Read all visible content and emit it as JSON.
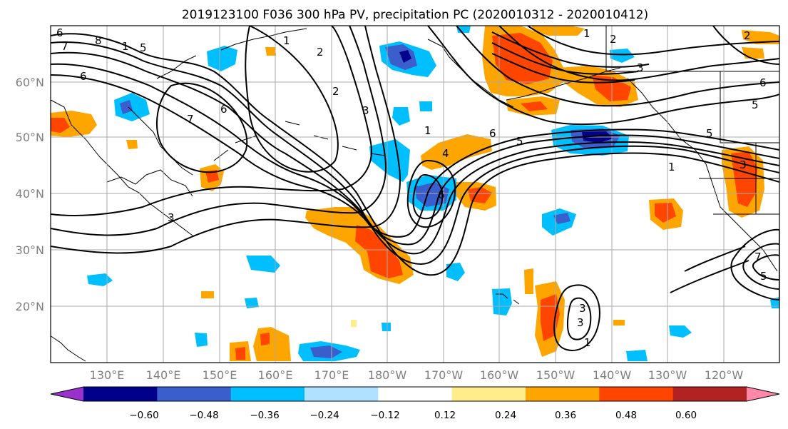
{
  "title": "2019123100 F036 300 hPa PV, precipitation PC (2020010312 - 2020010412)",
  "map": {
    "lat_ticks": [
      "60°N",
      "50°N",
      "40°N",
      "30°N",
      "20°N"
    ],
    "lon_ticks": [
      "130°E",
      "140°E",
      "150°E",
      "160°E",
      "170°E",
      "180°W",
      "170°W",
      "160°W",
      "150°W",
      "140°W",
      "130°W",
      "120°W"
    ],
    "contour_labels": [
      "6",
      "8",
      "7",
      "5",
      "1",
      "2",
      "6",
      "7",
      "6",
      "1",
      "2",
      "3",
      "1",
      "2",
      "3",
      "6",
      "5",
      "4",
      "1",
      "6",
      "3",
      "1",
      "5",
      "3",
      "6",
      "5",
      "2",
      "3",
      "1",
      "3",
      "7",
      "5"
    ]
  },
  "colorbar": {
    "tick_labels": [
      "−0.60",
      "−0.48",
      "−0.36",
      "−0.24",
      "−0.12",
      "0.12",
      "0.24",
      "0.36",
      "0.48",
      "0.60"
    ],
    "colors": [
      "#9932cc",
      "#00008b",
      "#3a5fcd",
      "#00bfff",
      "#b0e2ff",
      "#ffffff",
      "#ffec8b",
      "#ffa500",
      "#ff4500",
      "#b22222",
      "#ff88aa"
    ]
  }
}
